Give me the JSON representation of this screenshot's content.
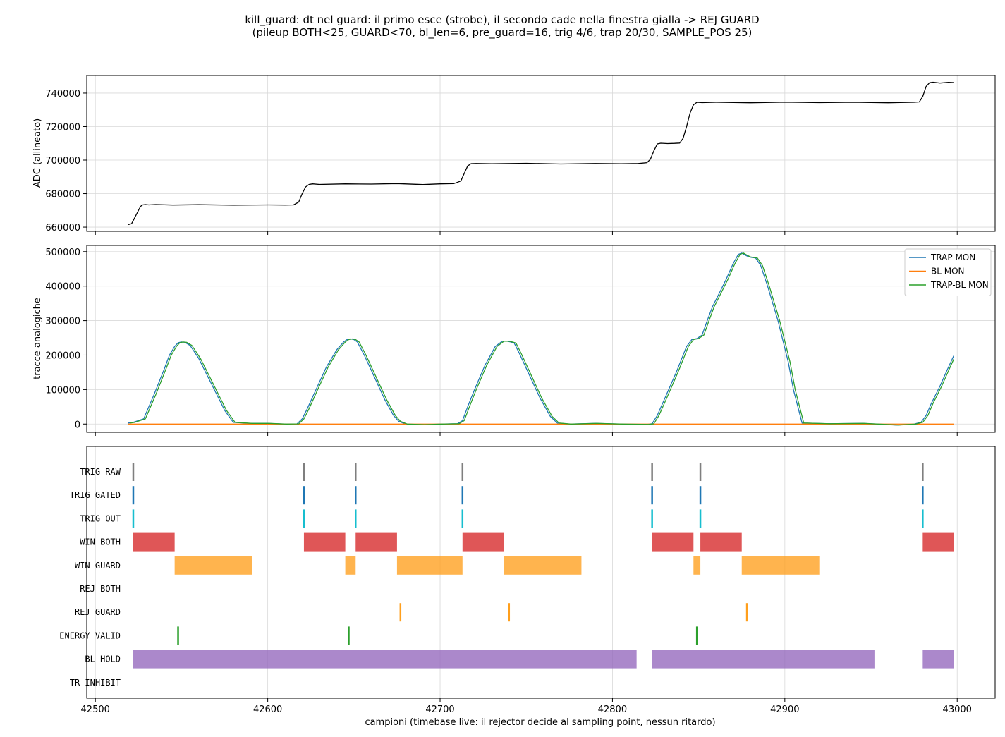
{
  "title": {
    "line1": "kill_guard: dt nel guard: il primo esce (strobe), il secondo cade nella finestra gialla -> REJ GUARD",
    "line2": "(pileup BOTH<25, GUARD<70, bl_len=6, pre_guard=16, trig 4/6, trap 20/30, SAMPLE_POS 25)"
  },
  "xlabel": "campioni (timebase live: il rejector decide al sampling point, nessun ritardo)",
  "xticks": [
    42500,
    42600,
    42700,
    42800,
    42900,
    43000
  ],
  "chart_data": [
    {
      "type": "line",
      "ylabel": "ADC (allineato)",
      "xlim": [
        42495,
        43022
      ],
      "ylim": [
        657500,
        750500
      ],
      "yticks": [
        660000,
        680000,
        700000,
        720000,
        740000
      ],
      "grid": true,
      "series": [
        {
          "color": "#000000",
          "x": [
            42519,
            42521,
            42522,
            42524,
            42526,
            42527,
            42529,
            42531,
            42535,
            42545,
            42560,
            42580,
            42600,
            42610,
            42615,
            42618,
            42620,
            42622,
            42624,
            42626,
            42630,
            42645,
            42660,
            42675,
            42690,
            42700,
            42708,
            42712,
            42714,
            42716,
            42718,
            42721,
            42730,
            42750,
            42770,
            42790,
            42805,
            42815,
            42820,
            42822,
            42824,
            42826,
            42828,
            42832,
            42836,
            42839,
            42841,
            42843,
            42845,
            42847,
            42849,
            42852,
            42860,
            42880,
            42900,
            42920,
            42940,
            42960,
            42975,
            42978,
            42980,
            42982,
            42984,
            42986,
            42990,
            42995,
            42998
          ],
          "y": [
            661500,
            662000,
            664000,
            668000,
            672000,
            673200,
            673500,
            673300,
            673500,
            673200,
            673400,
            673100,
            673300,
            673200,
            673300,
            675000,
            680000,
            684000,
            685500,
            685800,
            685500,
            685800,
            685700,
            686000,
            685400,
            685800,
            686000,
            687500,
            692000,
            696500,
            697900,
            698000,
            697800,
            698100,
            697700,
            698000,
            697800,
            698000,
            698500,
            700500,
            705500,
            709700,
            710100,
            709900,
            710000,
            710200,
            713000,
            720000,
            728000,
            733000,
            734500,
            734300,
            734500,
            734200,
            734600,
            734300,
            734500,
            734200,
            734500,
            734700,
            738000,
            744000,
            746200,
            746500,
            746000,
            746400,
            746300
          ]
        }
      ]
    },
    {
      "type": "line",
      "ylabel": "tracce analogiche",
      "xlim": [
        42495,
        43022
      ],
      "ylim": [
        -24000,
        518000
      ],
      "yticks": [
        0,
        100000,
        200000,
        300000,
        400000,
        500000
      ],
      "grid": true,
      "legend": "top-right",
      "series": [
        {
          "name": "TRAP MON",
          "color": "#1f77b4",
          "x": [
            42519,
            42522,
            42528,
            42534,
            42540,
            42543,
            42546,
            42548,
            42550,
            42552,
            42555,
            42560,
            42566,
            42572,
            42575,
            42580,
            42590,
            42600,
            42610,
            42617,
            42620,
            42623,
            42628,
            42634,
            42640,
            42644,
            42646,
            42648,
            42650,
            42652,
            42656,
            42662,
            42668,
            42673,
            42676,
            42680,
            42690,
            42700,
            42710,
            42713,
            42716,
            42720,
            42726,
            42732,
            42736,
            42739,
            42741,
            42743,
            42746,
            42752,
            42758,
            42764,
            42768,
            42775,
            42790,
            42805,
            42820,
            42823,
            42826,
            42830,
            42837,
            42843,
            42846,
            42849,
            42852,
            42855,
            42858,
            42862,
            42866,
            42870,
            42873,
            42875,
            42877,
            42879,
            42881,
            42883,
            42886,
            42890,
            42896,
            42902,
            42905,
            42910,
            42925,
            42945,
            42965,
            42975,
            42979,
            42982,
            42985,
            42990,
            42994,
            42998
          ],
          "y": [
            3000,
            5000,
            15000,
            85000,
            160000,
            200000,
            225000,
            236000,
            238000,
            237000,
            228000,
            190000,
            130000,
            70000,
            40000,
            5000,
            2000,
            2000,
            0,
            500,
            15000,
            45000,
            100000,
            165000,
            215000,
            238000,
            245000,
            247000,
            245000,
            238000,
            200000,
            135000,
            70000,
            25000,
            8000,
            0,
            -2000,
            0,
            1000,
            10000,
            50000,
            100000,
            170000,
            225000,
            240000,
            240000,
            238000,
            235000,
            205000,
            140000,
            75000,
            22000,
            3000,
            0,
            2000,
            0,
            -1000,
            1000,
            25000,
            70000,
            150000,
            225000,
            245000,
            248000,
            258000,
            300000,
            340000,
            380000,
            420000,
            465000,
            492000,
            496000,
            490000,
            485000,
            483000,
            482000,
            460000,
            400000,
            300000,
            180000,
            100000,
            3000,
            1000,
            2000,
            -3000,
            0,
            5000,
            25000,
            60000,
            110000,
            155000,
            198000
          ]
        },
        {
          "name": "BL MON",
          "color": "#ff7f0e",
          "x": [
            42519,
            42998
          ],
          "y": [
            0,
            0
          ]
        },
        {
          "name": "TRAP-BL MON",
          "color": "#2ca02c",
          "x": [
            42520,
            42523,
            42529,
            42535,
            42541,
            42544,
            42547,
            42549,
            42551,
            42553,
            42556,
            42561,
            42567,
            42573,
            42576,
            42581,
            42591,
            42601,
            42611,
            42618,
            42621,
            42624,
            42629,
            42635,
            42641,
            42645,
            42647,
            42649,
            42651,
            42653,
            42657,
            42663,
            42669,
            42674,
            42677,
            42681,
            42691,
            42701,
            42711,
            42714,
            42717,
            42721,
            42727,
            42733,
            42737,
            42740,
            42742,
            42744,
            42747,
            42753,
            42759,
            42765,
            42769,
            42776,
            42791,
            42806,
            42821,
            42824,
            42827,
            42831,
            42838,
            42844,
            42847,
            42850,
            42853,
            42856,
            42859,
            42863,
            42867,
            42871,
            42874,
            42876,
            42878,
            42880,
            42882,
            42884,
            42887,
            42891,
            42897,
            42903,
            42906,
            42911,
            42926,
            42946,
            42966,
            42976,
            42980,
            42983,
            42986,
            42991,
            42995,
            42998
          ],
          "y": [
            3000,
            5000,
            15000,
            85000,
            160000,
            200000,
            225000,
            236000,
            238000,
            237000,
            228000,
            190000,
            130000,
            70000,
            40000,
            5000,
            2000,
            2000,
            0,
            500,
            15000,
            45000,
            100000,
            165000,
            215000,
            238000,
            245000,
            247000,
            245000,
            238000,
            200000,
            135000,
            70000,
            25000,
            8000,
            0,
            -2000,
            0,
            1000,
            10000,
            50000,
            100000,
            170000,
            225000,
            240000,
            240000,
            238000,
            235000,
            205000,
            140000,
            75000,
            22000,
            3000,
            0,
            2000,
            0,
            -1000,
            1000,
            25000,
            70000,
            150000,
            225000,
            245000,
            248000,
            258000,
            300000,
            340000,
            380000,
            420000,
            465000,
            492000,
            496000,
            490000,
            485000,
            483000,
            482000,
            460000,
            400000,
            300000,
            180000,
            100000,
            3000,
            1000,
            2000,
            -3000,
            0,
            5000,
            25000,
            60000,
            110000,
            155000,
            188000
          ]
        }
      ]
    },
    {
      "type": "timeline",
      "xlim": [
        42495,
        43022
      ],
      "grid": true,
      "rows": [
        {
          "label": "TRIG RAW",
          "color": "#7f7f7f",
          "marks": [
            42522,
            42621,
            42651,
            42713,
            42823,
            42851,
            42980
          ]
        },
        {
          "label": "TRIG GATED",
          "color": "#1f77b4",
          "marks": [
            42522,
            42621,
            42651,
            42713,
            42823,
            42851,
            42980
          ]
        },
        {
          "label": "TRIG OUT",
          "color": "#17becf",
          "marks": [
            42522,
            42621,
            42651,
            42713,
            42823,
            42851,
            42980
          ]
        },
        {
          "label": "WIN BOTH",
          "color": "#d62728",
          "spans": [
            [
              42522,
              42546
            ],
            [
              42621,
              42645
            ],
            [
              42651,
              42675
            ],
            [
              42713,
              42737
            ],
            [
              42823,
              42847
            ],
            [
              42851,
              42875
            ],
            [
              42980,
              42998
            ]
          ]
        },
        {
          "label": "WIN GUARD",
          "color": "#ff9f1c",
          "spans": [
            [
              42546,
              42591
            ],
            [
              42645,
              42651
            ],
            [
              42675,
              42713
            ],
            [
              42737,
              42782
            ],
            [
              42847,
              42851
            ],
            [
              42875,
              42920
            ]
          ]
        },
        {
          "label": "REJ BOTH",
          "color": "#d62728"
        },
        {
          "label": "REJ GUARD",
          "color": "#ff9f1c",
          "marks": [
            42677,
            42740,
            42878
          ]
        },
        {
          "label": "ENERGY VALID",
          "color": "#2ca02c",
          "marks": [
            42548,
            42647,
            42849
          ]
        },
        {
          "label": "BL HOLD",
          "color": "#9467bd",
          "spans": [
            [
              42522,
              42814
            ],
            [
              42823,
              42952
            ],
            [
              42980,
              42998
            ]
          ]
        },
        {
          "label": "TR INHIBIT",
          "color": "#8c564b"
        }
      ]
    }
  ]
}
